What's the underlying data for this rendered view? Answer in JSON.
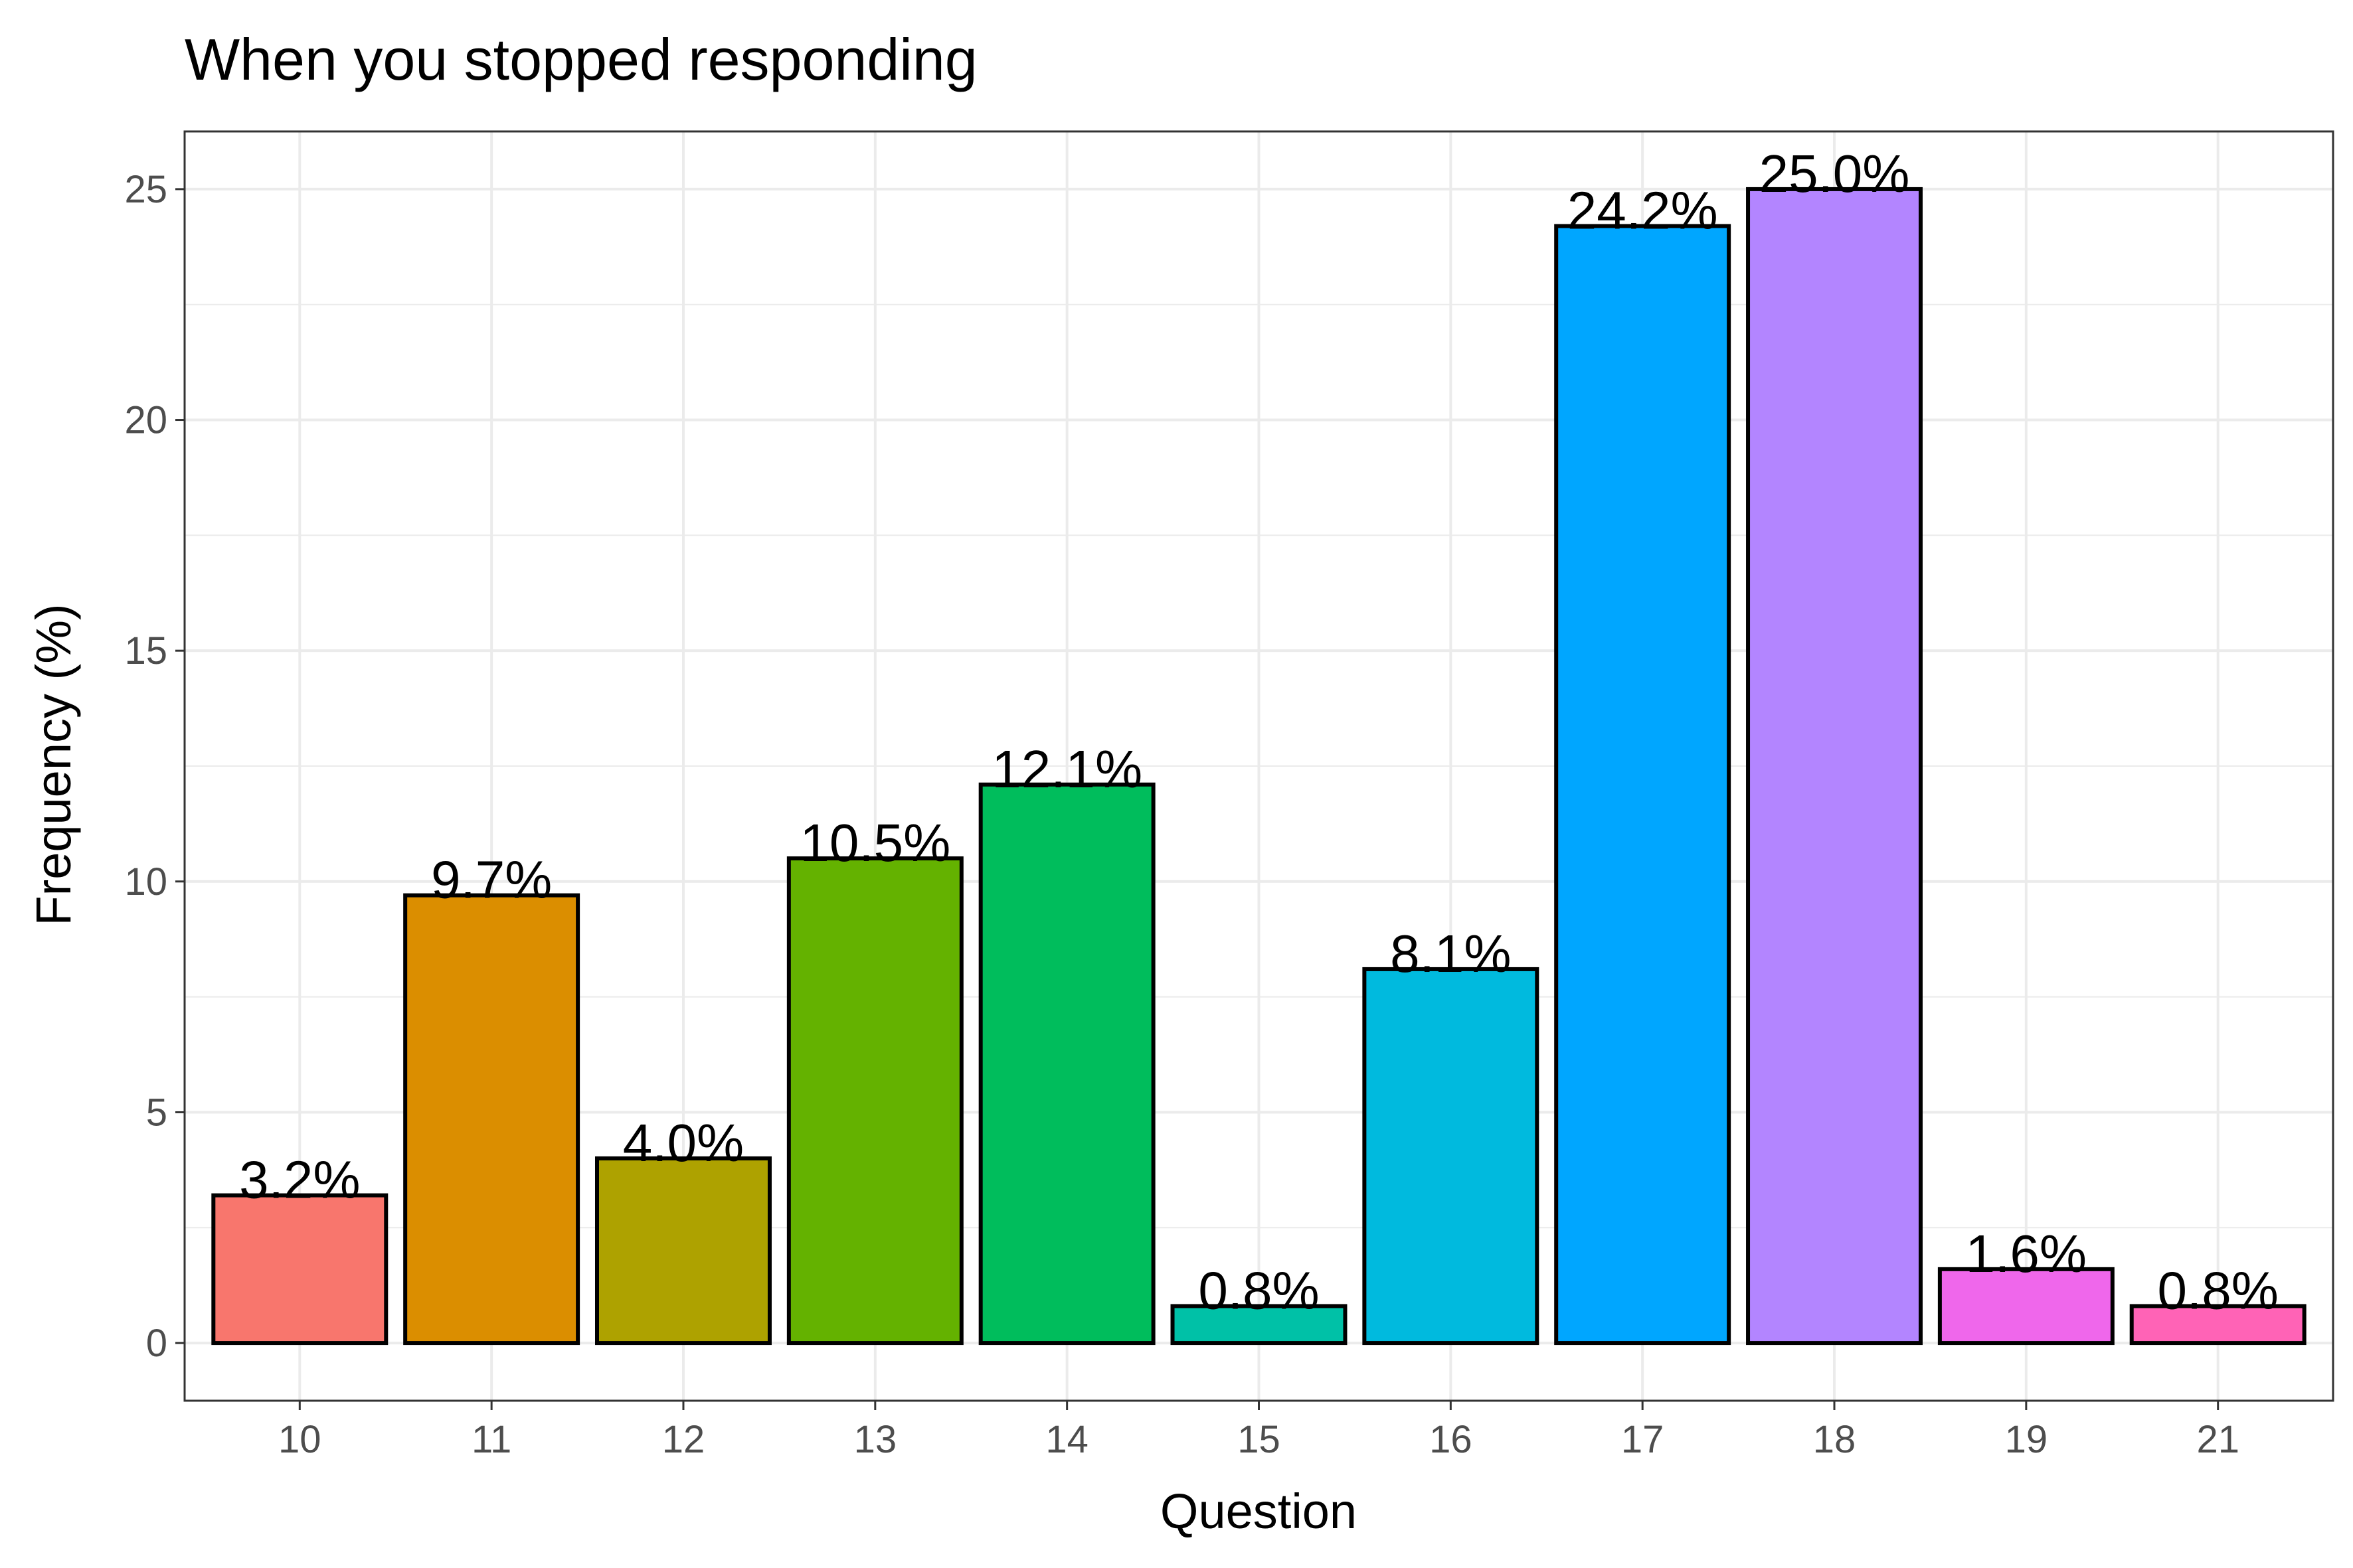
{
  "chart_data": {
    "type": "bar",
    "title": "When you stopped responding",
    "xlabel": "Question",
    "ylabel": "Frequency (%)",
    "categories": [
      "10",
      "11",
      "12",
      "13",
      "14",
      "15",
      "16",
      "17",
      "18",
      "19",
      "21"
    ],
    "values": [
      3.2,
      9.7,
      4.0,
      10.5,
      12.1,
      0.8,
      8.1,
      24.2,
      25.0,
      1.6,
      0.8
    ],
    "data_labels": [
      "3.2%",
      "9.7%",
      "4.0%",
      "10.5%",
      "12.1%",
      "0.8%",
      "8.1%",
      "24.2%",
      "25.0%",
      "1.6%",
      "0.8%"
    ],
    "colors": [
      "#F8766D",
      "#DB8E00",
      "#AEA200",
      "#64B200",
      "#00BD5C",
      "#00C1A7",
      "#00BADE",
      "#00A6FF",
      "#B385FF",
      "#EF67EB",
      "#FF63B6"
    ],
    "bar_outline": "#000000",
    "ylim": [
      -1.25,
      26.25
    ],
    "yticks": [
      0,
      5,
      10,
      15,
      20,
      25
    ],
    "ytick_labels": [
      "0",
      "5",
      "10",
      "15",
      "20",
      "25"
    ],
    "grid": true,
    "legend": "none"
  }
}
